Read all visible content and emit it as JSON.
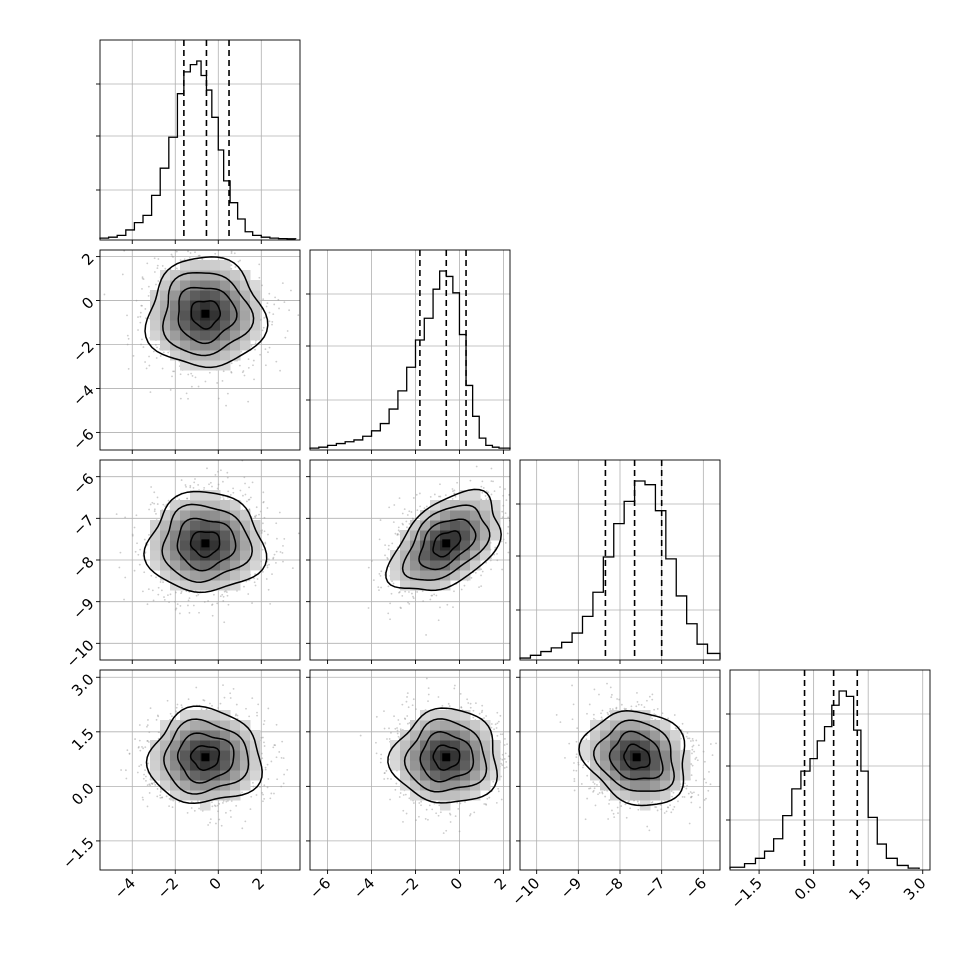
{
  "chart_data": {
    "type": "corner",
    "grid": true,
    "parameters": [
      {
        "label": "",
        "range": [
          -5.5,
          3.8
        ],
        "ticks": [
          -4,
          -2,
          0,
          2
        ],
        "tick_labels": [
          "−4",
          "−2",
          "0",
          "2"
        ],
        "quantiles": [
          -1.6,
          -0.55,
          0.5
        ],
        "histogram": {
          "bin_edges": [
            -5.5,
            -5.1,
            -4.7,
            -4.3,
            -3.9,
            -3.5,
            -3.1,
            -2.7,
            -2.3,
            -1.9,
            -1.6,
            -1.3,
            -1.0,
            -0.8,
            -0.55,
            -0.3,
            0.0,
            0.25,
            0.55,
            0.9,
            1.25,
            1.6,
            2.0,
            2.4,
            2.8,
            3.2,
            3.6
          ],
          "counts": [
            0.005,
            0.01,
            0.02,
            0.05,
            0.09,
            0.13,
            0.24,
            0.39,
            0.56,
            0.8,
            0.92,
            0.96,
            0.98,
            0.9,
            0.82,
            0.67,
            0.49,
            0.32,
            0.2,
            0.11,
            0.04,
            0.02,
            0.01,
            0.005,
            0.002,
            0.001
          ]
        }
      },
      {
        "label": "",
        "range": [
          -6.8,
          2.3
        ],
        "ticks": [
          -6,
          -4,
          -2,
          0,
          2
        ],
        "tick_labels": [
          "−6",
          "−4",
          "−2",
          "0",
          "2"
        ],
        "quantiles": [
          -1.8,
          -0.6,
          0.3
        ],
        "histogram": {
          "bin_edges": [
            -6.8,
            -6.4,
            -6.0,
            -5.6,
            -5.2,
            -4.8,
            -4.4,
            -4.0,
            -3.6,
            -3.2,
            -2.8,
            -2.4,
            -2.0,
            -1.6,
            -1.2,
            -0.9,
            -0.6,
            -0.3,
            0.0,
            0.3,
            0.6,
            0.9,
            1.2,
            1.5,
            1.8,
            2.3
          ],
          "counts": [
            0.005,
            0.01,
            0.02,
            0.03,
            0.04,
            0.05,
            0.07,
            0.1,
            0.14,
            0.22,
            0.32,
            0.45,
            0.6,
            0.72,
            0.88,
            0.98,
            0.95,
            0.86,
            0.63,
            0.35,
            0.18,
            0.06,
            0.02,
            0.01,
            0.005
          ]
        }
      },
      {
        "label": "",
        "range": [
          -10.4,
          -5.6
        ],
        "ticks": [
          -10,
          -9,
          -8,
          -7,
          -6
        ],
        "tick_labels": [
          "−10",
          "−9",
          "−8",
          "−7",
          "−6"
        ],
        "quantiles": [
          -8.35,
          -7.65,
          -7.0
        ],
        "histogram": {
          "bin_edges": [
            -10.4,
            -10.15,
            -9.9,
            -9.65,
            -9.4,
            -9.15,
            -8.9,
            -8.65,
            -8.4,
            -8.15,
            -7.9,
            -7.65,
            -7.4,
            -7.15,
            -6.9,
            -6.65,
            -6.4,
            -6.15,
            -5.9,
            -5.6
          ],
          "counts": [
            0.005,
            0.02,
            0.04,
            0.06,
            0.09,
            0.14,
            0.23,
            0.36,
            0.55,
            0.73,
            0.85,
            0.96,
            0.94,
            0.8,
            0.54,
            0.34,
            0.19,
            0.08,
            0.03
          ]
        }
      },
      {
        "label": "",
        "range": [
          -2.3,
          3.2
        ],
        "ticks": [
          -1.5,
          0.0,
          1.5,
          3.0
        ],
        "tick_labels": [
          "−1.5",
          "0.0",
          "1.5",
          "3.0"
        ],
        "quantiles": [
          -0.25,
          0.55,
          1.2
        ],
        "histogram": {
          "bin_edges": [
            -2.3,
            -1.9,
            -1.6,
            -1.35,
            -1.1,
            -0.85,
            -0.6,
            -0.35,
            -0.1,
            0.1,
            0.3,
            0.5,
            0.7,
            0.9,
            1.1,
            1.3,
            1.5,
            1.75,
            2.0,
            2.3,
            2.6,
            2.9
          ],
          "counts": [
            0.01,
            0.03,
            0.06,
            0.1,
            0.17,
            0.3,
            0.45,
            0.55,
            0.62,
            0.72,
            0.8,
            0.92,
            1.0,
            0.97,
            0.78,
            0.55,
            0.29,
            0.14,
            0.06,
            0.02,
            0.005
          ]
        }
      }
    ],
    "pairs": [
      {
        "x": 0,
        "y": 1,
        "center": [
          -0.6,
          -0.6
        ],
        "spread": [
          1.35,
          1.25
        ],
        "correlation": 0.0
      },
      {
        "x": 0,
        "y": 2,
        "center": [
          -0.6,
          -7.6
        ],
        "spread": [
          1.35,
          0.6
        ],
        "correlation": 0.0
      },
      {
        "x": 1,
        "y": 2,
        "center": [
          -0.6,
          -7.6
        ],
        "spread": [
          1.25,
          0.6
        ],
        "correlation": 0.45
      },
      {
        "x": 0,
        "y": 3,
        "center": [
          -0.6,
          0.8
        ],
        "spread": [
          1.3,
          0.65
        ],
        "correlation": 0.0
      },
      {
        "x": 1,
        "y": 3,
        "center": [
          -0.6,
          0.8
        ],
        "spread": [
          1.2,
          0.65
        ],
        "correlation": 0.0
      },
      {
        "x": 2,
        "y": 3,
        "center": [
          -7.6,
          0.8
        ],
        "spread": [
          0.62,
          0.65
        ],
        "correlation": -0.15
      }
    ],
    "contour_levels_sigma": [
      0.5,
      1.0,
      1.5,
      2.0
    ]
  }
}
